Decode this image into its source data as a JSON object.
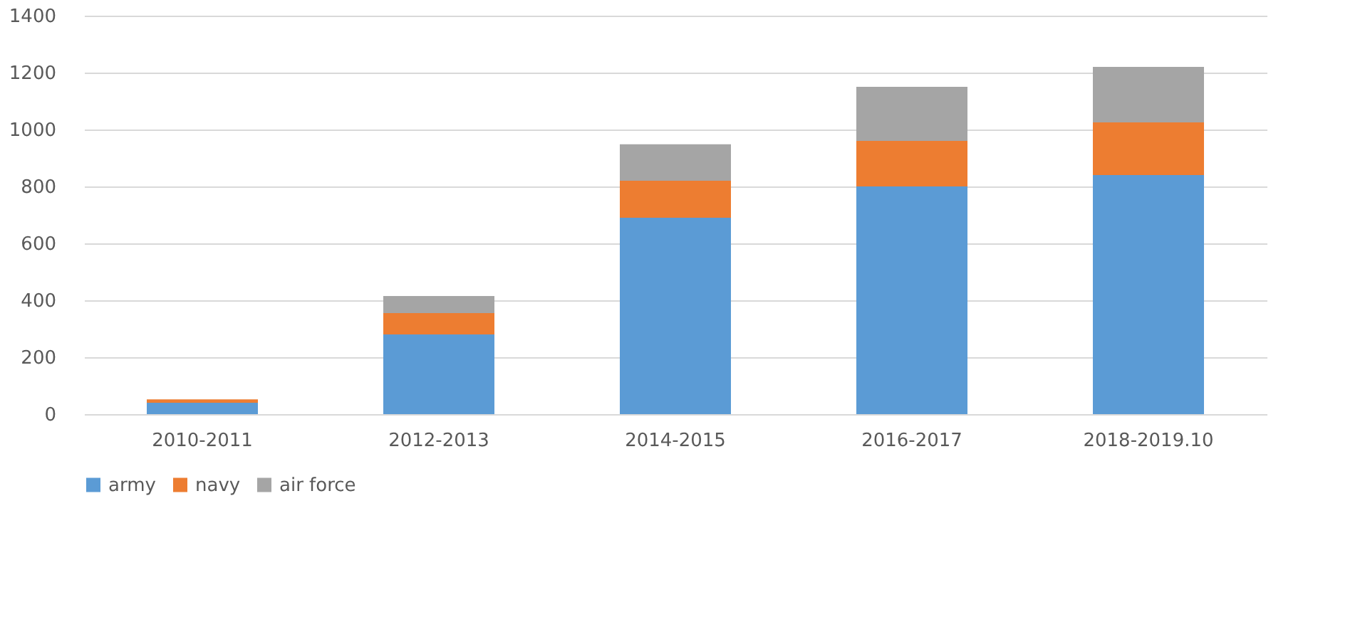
{
  "chart_data": {
    "type": "bar",
    "stacked": true,
    "categories": [
      "2010-2011",
      "2012-2013",
      "2014-2015",
      "2016-2017",
      "2018-2019.10"
    ],
    "series": [
      {
        "name": "army",
        "color": "#5b9bd5",
        "values": [
          40,
          280,
          690,
          800,
          840
        ]
      },
      {
        "name": "navy",
        "color": "#ed7d31",
        "values": [
          12,
          75,
          130,
          160,
          185
        ]
      },
      {
        "name": "air force",
        "color": "#a5a5a5",
        "values": [
          null,
          60,
          128,
          190,
          195
        ]
      }
    ],
    "ylim": [
      0,
      1400
    ],
    "yticks": [
      0,
      200,
      400,
      600,
      800,
      1000,
      1200,
      1400
    ],
    "grid": "y",
    "legend": "bottom"
  }
}
